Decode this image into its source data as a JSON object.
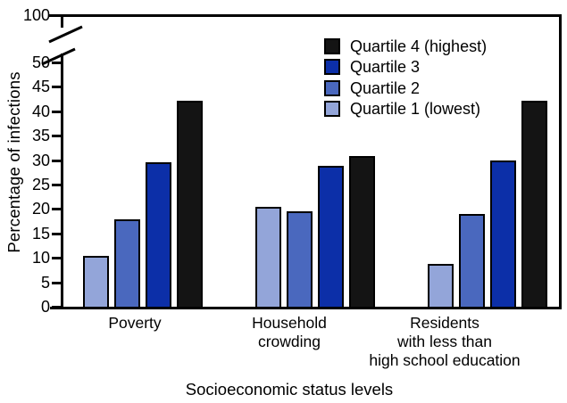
{
  "figure": {
    "y_axis_title": "Percentage of infections",
    "x_axis_title": "Socioeconomic status levels"
  },
  "legend": {
    "items": [
      {
        "label": "Quartile 4 (highest)",
        "color": "#141414"
      },
      {
        "label": "Quartile 3",
        "color": "#0c2fa8"
      },
      {
        "label": "Quartile 2",
        "color": "#4a68be"
      },
      {
        "label": "Quartile 1 (lowest)",
        "color": "#93a5d9"
      }
    ]
  },
  "chart_data": {
    "type": "bar",
    "title": "",
    "xlabel": "Socioeconomic status levels",
    "ylabel": "Percentage of infections",
    "categories": [
      "Poverty",
      "Household crowding",
      "Residents with less than high school education"
    ],
    "categories_display": [
      [
        "Poverty"
      ],
      [
        "Household",
        "crowding"
      ],
      [
        "Residents",
        "with less than",
        "high school education"
      ]
    ],
    "series": [
      {
        "name": "Quartile 1 (lowest)",
        "color": "#93a5d9",
        "values": [
          10.4,
          20.4,
          8.8
        ]
      },
      {
        "name": "Quartile 2",
        "color": "#4a68be",
        "values": [
          17.9,
          19.6,
          18.9
        ]
      },
      {
        "name": "Quartile 3",
        "color": "#0c2fa8",
        "values": [
          29.5,
          28.9,
          29.9
        ]
      },
      {
        "name": "Quartile 4 (highest)",
        "color": "#141414",
        "values": [
          42.1,
          30.9,
          42.2
        ]
      }
    ],
    "y_ticks": [
      0,
      5,
      10,
      15,
      20,
      25,
      30,
      35,
      40,
      45,
      50,
      100
    ],
    "ylim": [
      0,
      50
    ],
    "y_axis_break": {
      "between": [
        50,
        100
      ]
    },
    "grid": false,
    "legend_position": "upper-center-right",
    "legend_order": [
      "Quartile 4 (highest)",
      "Quartile 3",
      "Quartile 2",
      "Quartile 1 (lowest)"
    ]
  }
}
